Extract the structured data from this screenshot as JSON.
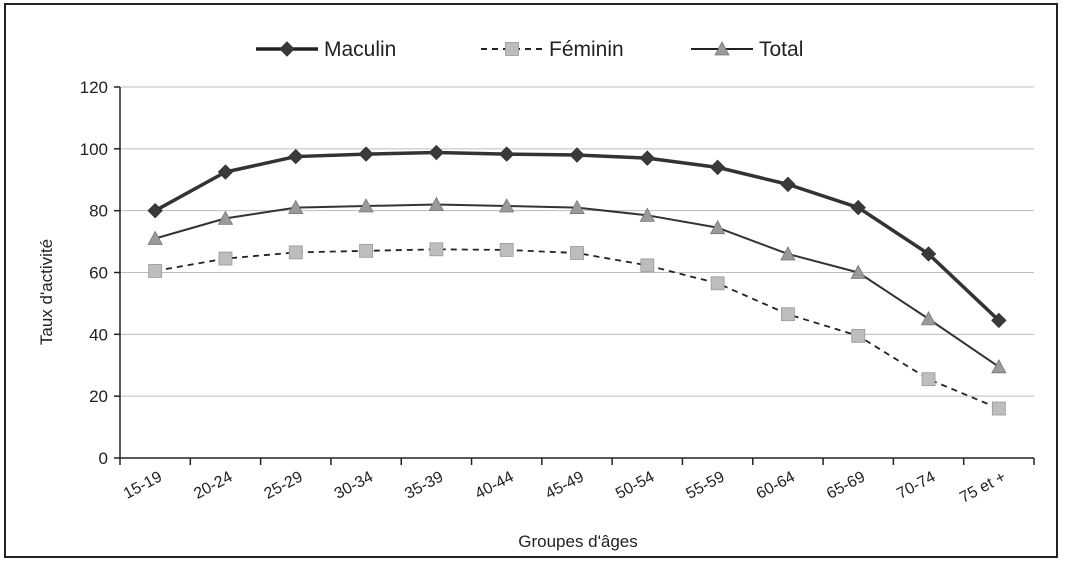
{
  "chart_data": {
    "type": "line",
    "title": "",
    "xlabel": "Groupes d'âges",
    "ylabel": "Taux d'activité",
    "categories": [
      "15-19",
      "20-24",
      "25-29",
      "30-34",
      "35-39",
      "40-44",
      "45-49",
      "50-54",
      "55-59",
      "60-64",
      "65-69",
      "70-74",
      "75 et +"
    ],
    "ylim": [
      0,
      120
    ],
    "yticks": [
      0,
      20,
      40,
      60,
      80,
      100,
      120
    ],
    "grid": true,
    "legend_position": "top",
    "series": [
      {
        "name": "Maculin",
        "marker": "diamond",
        "line": "solid",
        "color": "#3a3a3a",
        "values": [
          80,
          92.5,
          97.5,
          98.3,
          98.8,
          98.3,
          98,
          97,
          94,
          88.5,
          81,
          66,
          44.5
        ]
      },
      {
        "name": "Féminin",
        "marker": "square",
        "line": "dashed",
        "color": "#bdbdbd",
        "values": [
          60.5,
          64.5,
          66.5,
          67,
          67.5,
          67.3,
          66.3,
          62.3,
          56.5,
          46.5,
          39.5,
          25.5,
          16
        ]
      },
      {
        "name": "Total",
        "marker": "triangle",
        "line": "solid",
        "color": "#9a9a9a",
        "values": [
          71,
          77.5,
          81,
          81.5,
          82,
          81.5,
          81,
          78.5,
          74.5,
          66,
          60,
          45,
          29.5
        ]
      }
    ]
  }
}
